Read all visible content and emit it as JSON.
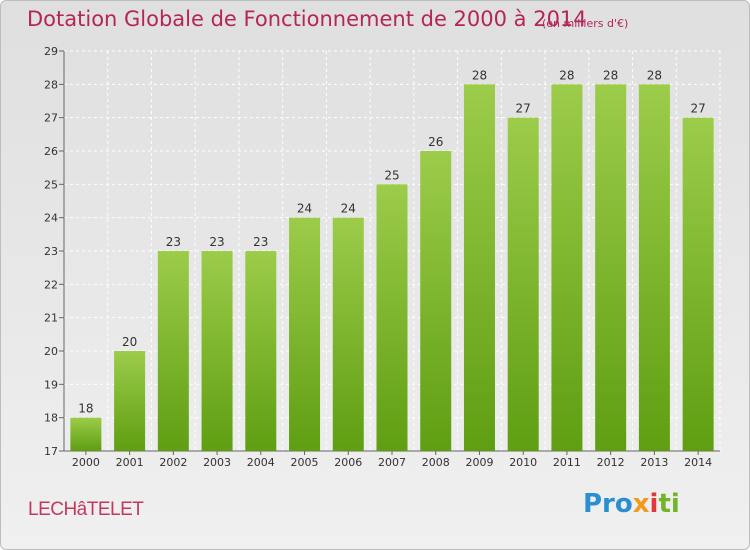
{
  "title": "Dotation Globale de Fonctionnement de 2000 à 2014",
  "subtitle": "(en milliers d'€)",
  "commune": "LECHâTELET",
  "logo": {
    "p1": "Pro",
    "p2": "x",
    "p3": "i",
    "p4": "ti"
  },
  "colors": {
    "title": "#b5255a",
    "bar_top": "#9ccc4a",
    "bar_bottom": "#5f9e12"
  },
  "chart_data": {
    "type": "bar",
    "title": "Dotation Globale de Fonctionnement de 2000 à 2014",
    "subtitle": "(en milliers d'€)",
    "xlabel": "",
    "ylabel": "",
    "ylim": [
      17,
      29
    ],
    "yticks": [
      17,
      18,
      19,
      20,
      21,
      22,
      23,
      24,
      25,
      26,
      27,
      28,
      29
    ],
    "categories": [
      "2000",
      "2001",
      "2002",
      "2003",
      "2004",
      "2005",
      "2006",
      "2007",
      "2008",
      "2009",
      "2010",
      "2011",
      "2012",
      "2013",
      "2014"
    ],
    "values": [
      18,
      20,
      23,
      23,
      23,
      24,
      24,
      25,
      26,
      28,
      27,
      28,
      28,
      28,
      27
    ],
    "grid": true
  }
}
